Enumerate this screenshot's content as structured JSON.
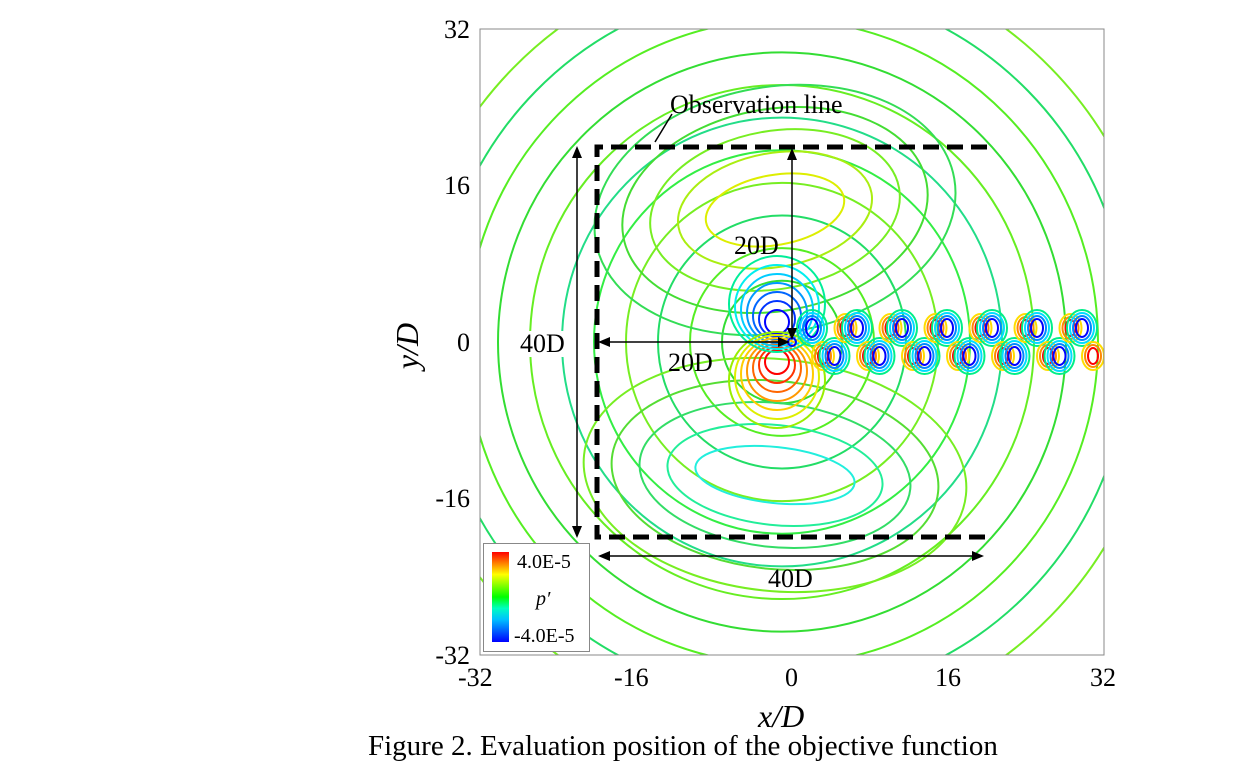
{
  "figure": {
    "caption": "Figure 2. Evaluation position of the objective function",
    "x_axis_label": "x/D",
    "y_axis_label": "y/D",
    "x_ticks": [
      "-32",
      "-16",
      "0",
      "16",
      "32"
    ],
    "y_ticks": [
      "32",
      "16",
      "0",
      "-16",
      "-32"
    ],
    "x_range": [
      -32,
      32
    ],
    "y_range": [
      -32,
      32
    ],
    "annotations": {
      "observation_line": "Observation line",
      "vertical_40": "40D",
      "horizontal_40": "40D",
      "vertical_20": "20D",
      "horizontal_20": "20D"
    },
    "observation_box_extent_D": [
      -20,
      20
    ],
    "legend": {
      "variable": "p′",
      "max": "4.0E-5",
      "min": "-4.0E-5"
    }
  }
}
